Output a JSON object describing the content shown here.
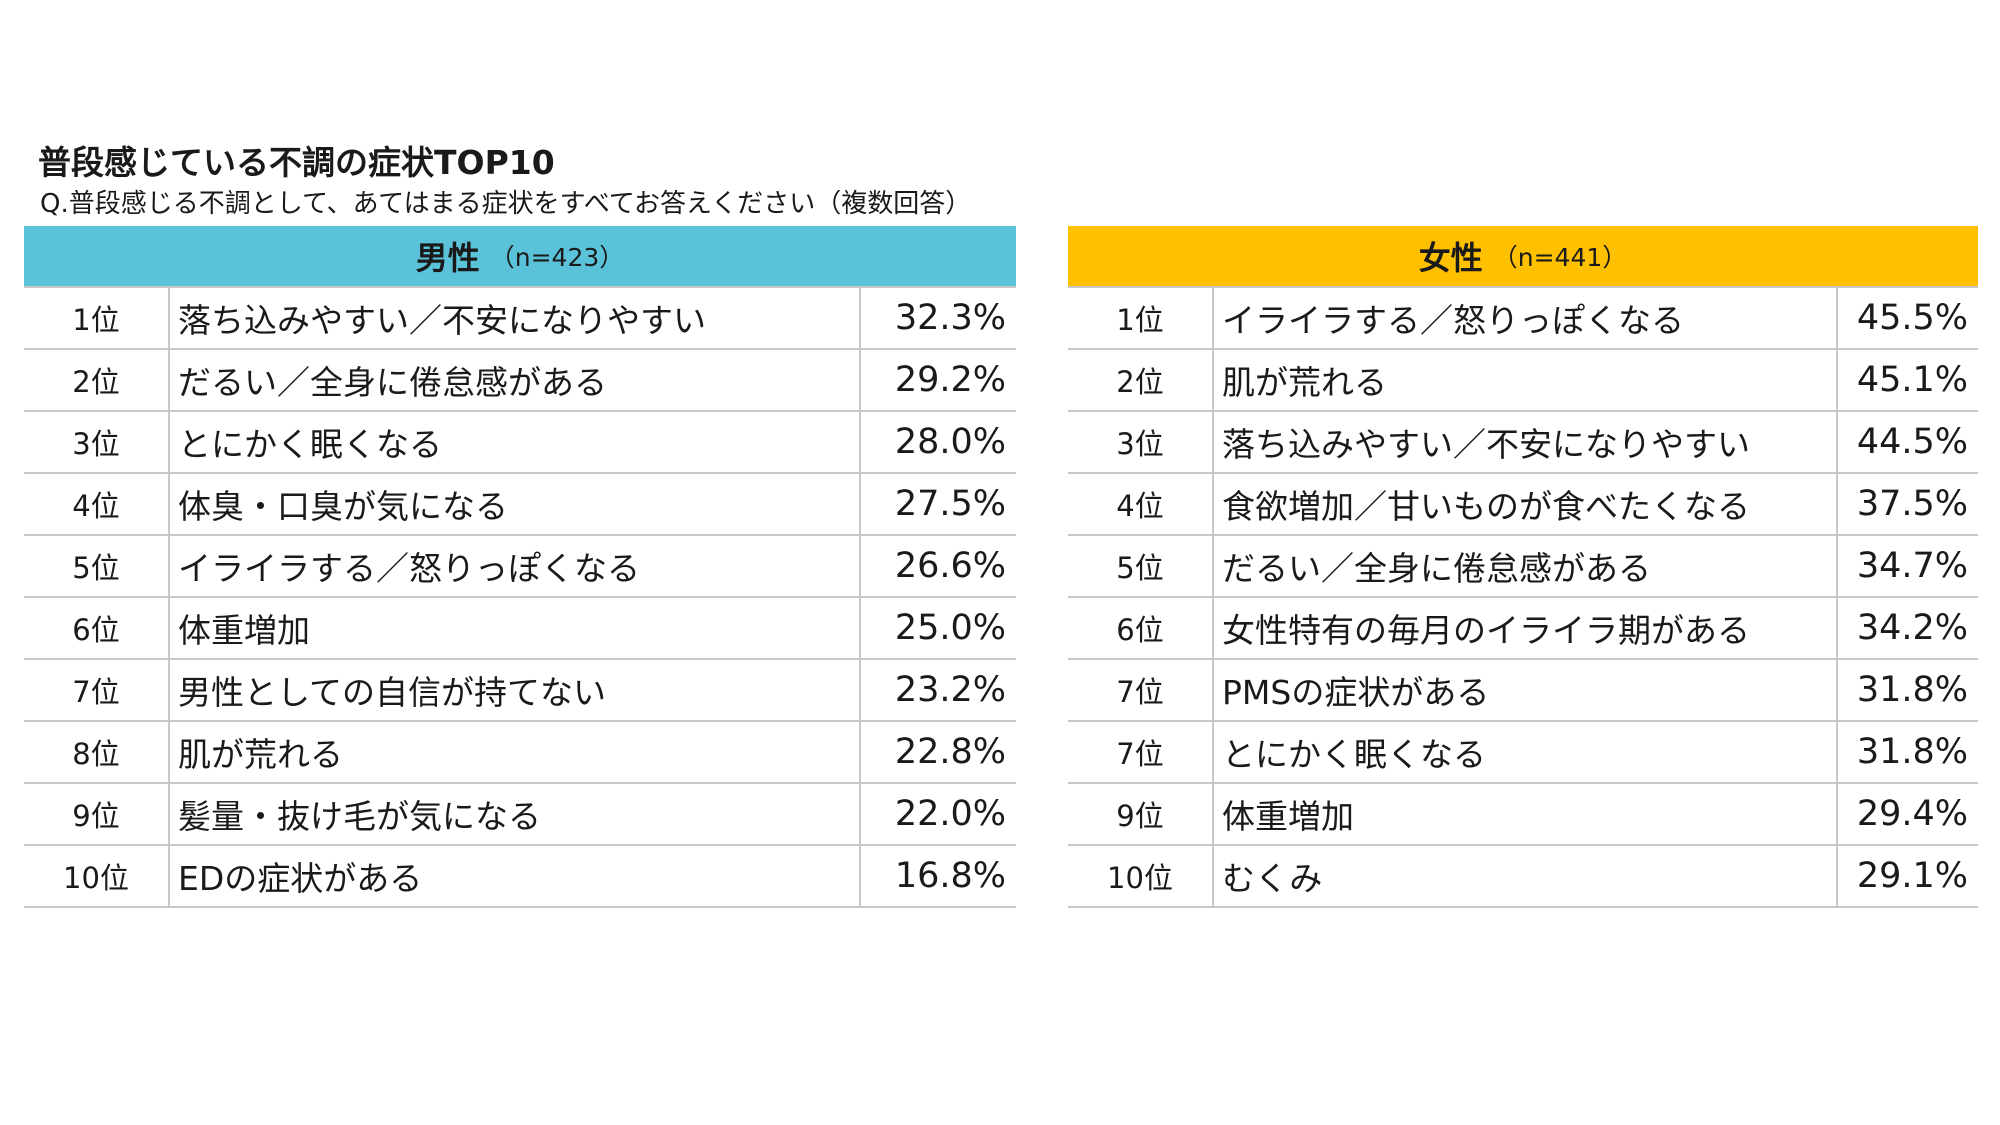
{
  "title": "普段感じている不調の症状TOP10",
  "subtitle": "Q.普段感じる不調として、あてはまる症状をすべてお答えください（複数回答）",
  "colors": {
    "male_header": "#5bc3d9",
    "female_header": "#ffc000",
    "grid": "#c8c8c8"
  },
  "male": {
    "label": "男性",
    "n": "（n=423）",
    "rows": [
      {
        "rank": "1位",
        "symptom": "落ち込みやすい／不安になりやすい",
        "pct": "32.3%"
      },
      {
        "rank": "2位",
        "symptom": "だるい／全身に倦怠感がある",
        "pct": "29.2%"
      },
      {
        "rank": "3位",
        "symptom": "とにかく眠くなる",
        "pct": "28.0%"
      },
      {
        "rank": "4位",
        "symptom": "体臭・口臭が気になる",
        "pct": "27.5%"
      },
      {
        "rank": "5位",
        "symptom": "イライラする／怒りっぽくなる",
        "pct": "26.6%"
      },
      {
        "rank": "6位",
        "symptom": "体重増加",
        "pct": "25.0%"
      },
      {
        "rank": "7位",
        "symptom": "男性としての自信が持てない",
        "pct": "23.2%"
      },
      {
        "rank": "8位",
        "symptom": "肌が荒れる",
        "pct": "22.8%"
      },
      {
        "rank": "9位",
        "symptom": "髪量・抜け毛が気になる",
        "pct": "22.0%"
      },
      {
        "rank": "10位",
        "symptom": "EDの症状がある",
        "pct": "16.8%"
      }
    ]
  },
  "female": {
    "label": "女性",
    "n": "（n=441）",
    "rows": [
      {
        "rank": "1位",
        "symptom": "イライラする／怒りっぽくなる",
        "pct": "45.5%"
      },
      {
        "rank": "2位",
        "symptom": "肌が荒れる",
        "pct": "45.1%"
      },
      {
        "rank": "3位",
        "symptom": "落ち込みやすい／不安になりやすい",
        "pct": "44.5%"
      },
      {
        "rank": "4位",
        "symptom": "食欲増加／甘いものが食べたくなる",
        "pct": "37.5%"
      },
      {
        "rank": "5位",
        "symptom": "だるい／全身に倦怠感がある",
        "pct": "34.7%"
      },
      {
        "rank": "6位",
        "symptom": "女性特有の毎月のイライラ期がある",
        "pct": "34.2%"
      },
      {
        "rank": "7位",
        "symptom": "PMSの症状がある",
        "pct": "31.8%"
      },
      {
        "rank": "7位",
        "symptom": "とにかく眠くなる",
        "pct": "31.8%"
      },
      {
        "rank": "9位",
        "symptom": "体重増加",
        "pct": "29.4%"
      },
      {
        "rank": "10位",
        "symptom": "むくみ",
        "pct": "29.1%"
      }
    ]
  }
}
